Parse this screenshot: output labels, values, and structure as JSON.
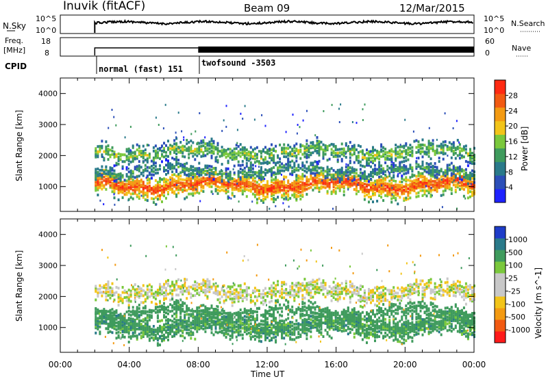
{
  "header": {
    "station": "Inuvik (fitACF)",
    "beam": "Beam 09",
    "date": "12/Mar/2015"
  },
  "strips": {
    "nsky": {
      "left_label": "N.Sky",
      "left_ticks": [
        "10^5",
        "10^0"
      ],
      "right_ticks": [
        "10^5",
        "10^0"
      ],
      "right_label": "N.Search"
    },
    "freq": {
      "left_label_1": "Freq.",
      "left_label_2": "[MHz]",
      "left_ticks": [
        "18",
        "8"
      ],
      "right_ticks": [
        "60",
        "0"
      ],
      "right_label": "Nave"
    },
    "cpid": {
      "label": "CPID",
      "segments": [
        {
          "text": "normal (fast) 151",
          "start_hour": 2.0
        },
        {
          "text": "twofsound -3503",
          "start_hour": 8.0
        }
      ]
    }
  },
  "colors": {
    "power_scale": [
      "#1e22ff",
      "#2c4fb8",
      "#2a7a8a",
      "#3f9b5d",
      "#7ac83c",
      "#f2c419",
      "#f39a12",
      "#f25a12",
      "#ff2a12"
    ],
    "velocity_scale": [
      "#ff1a1a",
      "#f25a12",
      "#f39a12",
      "#f2c419",
      "#c8c8c8",
      "#c8c8c8",
      "#7ac83c",
      "#3f9b5d",
      "#2a7a8a",
      "#1e3cc8"
    ]
  },
  "chart_data": [
    {
      "type": "heatmap",
      "title": "",
      "ylabel": "Slant Range [km]",
      "xlabel": "",
      "xlim_hours": [
        0,
        24
      ],
      "ylim": [
        200,
        4500
      ],
      "yticks": [
        "4000",
        "3000",
        "2000",
        "1000"
      ],
      "ytick_values": [
        4000,
        3000,
        2000,
        1000
      ],
      "colorbar": {
        "label": "Power [dB]",
        "ticks": [
          "28",
          "24",
          "20",
          "16",
          "12",
          "8",
          "4"
        ],
        "range": [
          0,
          32
        ]
      },
      "bands": [
        {
          "name": "main",
          "start_hour": 2.0,
          "end_hour": 24.0,
          "center_km": 1050,
          "width_km": 450,
          "power_db": 28
        },
        {
          "name": "upper",
          "start_hour": 2.0,
          "end_hour": 24.0,
          "center_km": 2100,
          "width_km": 350,
          "power_db": 16
        },
        {
          "name": "middle",
          "start_hour": 2.0,
          "end_hour": 24.0,
          "center_km": 1500,
          "width_km": 250,
          "power_db": 12
        }
      ]
    },
    {
      "type": "heatmap",
      "title": "",
      "ylabel": "Slant Range [km]",
      "xlabel": "Time UT",
      "xlim_hours": [
        0,
        24
      ],
      "xticks": [
        "00:00",
        "04:00",
        "08:00",
        "12:00",
        "16:00",
        "20:00",
        "00:00"
      ],
      "ylim": [
        200,
        4500
      ],
      "yticks": [
        "4000",
        "3000",
        "2000",
        "1000"
      ],
      "ytick_values": [
        4000,
        3000,
        2000,
        1000
      ],
      "colorbar": {
        "label": "Velocity [m s^-1]",
        "ticks": [
          "1000",
          "500",
          "100",
          "25",
          "-25",
          "-100",
          "-500",
          "-1000"
        ]
      },
      "bands": [
        {
          "name": "main",
          "start_hour": 2.0,
          "end_hour": 24.0,
          "center_km": 1050,
          "width_km": 450,
          "velocity": 300
        },
        {
          "name": "upper",
          "start_hour": 2.0,
          "end_hour": 24.0,
          "center_km": 2150,
          "width_km": 350,
          "velocity": 0
        },
        {
          "name": "middle",
          "start_hour": 2.0,
          "end_hour": 24.0,
          "center_km": 1500,
          "width_km": 250,
          "velocity": 200
        }
      ]
    }
  ],
  "labels": {
    "time_axis": "Time UT",
    "range_axis": "Slant Range [km]"
  }
}
